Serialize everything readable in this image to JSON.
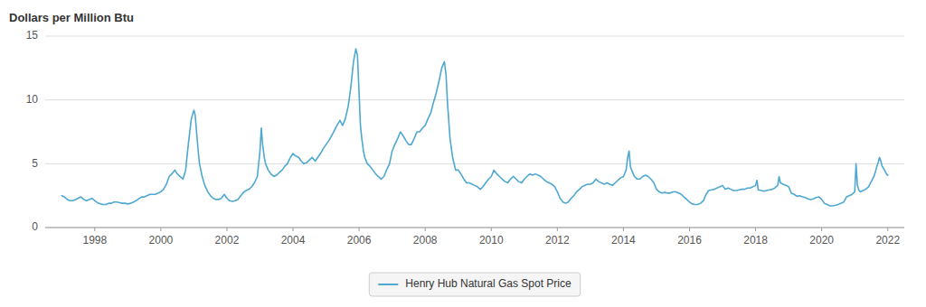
{
  "chart_data": {
    "type": "line",
    "ylabel": "Dollars per Million Btu",
    "xlim": [
      1996.5,
      2022.5
    ],
    "xticks": [
      1998,
      2000,
      2002,
      2004,
      2006,
      2008,
      2010,
      2012,
      2014,
      2016,
      2018,
      2020,
      2022
    ],
    "ylim": [
      0,
      15
    ],
    "yticks": [
      0,
      5,
      10,
      15
    ],
    "grid": true,
    "legend": "bottom",
    "x": [
      1997.0,
      1997.08,
      1997.17,
      1997.25,
      1997.33,
      1997.42,
      1997.5,
      1997.58,
      1997.67,
      1997.75,
      1997.83,
      1997.92,
      1998.0,
      1998.08,
      1998.17,
      1998.25,
      1998.33,
      1998.42,
      1998.5,
      1998.58,
      1998.67,
      1998.75,
      1998.83,
      1998.92,
      1999.0,
      1999.08,
      1999.17,
      1999.25,
      1999.33,
      1999.42,
      1999.5,
      1999.58,
      1999.67,
      1999.75,
      1999.83,
      1999.92,
      2000.0,
      2000.08,
      2000.17,
      2000.25,
      2000.33,
      2000.42,
      2000.5,
      2000.58,
      2000.67,
      2000.75,
      2000.83,
      2000.92,
      2001.0,
      2001.04,
      2001.08,
      2001.13,
      2001.17,
      2001.25,
      2001.33,
      2001.42,
      2001.5,
      2001.58,
      2001.67,
      2001.75,
      2001.83,
      2001.92,
      2002.0,
      2002.08,
      2002.17,
      2002.25,
      2002.33,
      2002.42,
      2002.5,
      2002.58,
      2002.67,
      2002.75,
      2002.83,
      2002.92,
      2003.0,
      2003.04,
      2003.08,
      2003.13,
      2003.17,
      2003.25,
      2003.33,
      2003.42,
      2003.5,
      2003.58,
      2003.67,
      2003.75,
      2003.83,
      2003.92,
      2004.0,
      2004.08,
      2004.17,
      2004.25,
      2004.33,
      2004.42,
      2004.5,
      2004.58,
      2004.67,
      2004.75,
      2004.83,
      2004.92,
      2005.0,
      2005.08,
      2005.17,
      2005.25,
      2005.33,
      2005.42,
      2005.5,
      2005.58,
      2005.67,
      2005.75,
      2005.83,
      2005.9,
      2005.95,
      2006.0,
      2006.04,
      2006.08,
      2006.13,
      2006.17,
      2006.25,
      2006.33,
      2006.42,
      2006.5,
      2006.58,
      2006.67,
      2006.75,
      2006.83,
      2006.92,
      2007.0,
      2007.08,
      2007.17,
      2007.25,
      2007.33,
      2007.42,
      2007.5,
      2007.58,
      2007.67,
      2007.75,
      2007.83,
      2007.92,
      2008.0,
      2008.08,
      2008.17,
      2008.25,
      2008.33,
      2008.42,
      2008.5,
      2008.58,
      2008.63,
      2008.67,
      2008.75,
      2008.83,
      2008.92,
      2009.0,
      2009.08,
      2009.17,
      2009.25,
      2009.33,
      2009.42,
      2009.5,
      2009.58,
      2009.67,
      2009.75,
      2009.83,
      2009.92,
      2010.0,
      2010.08,
      2010.17,
      2010.25,
      2010.33,
      2010.42,
      2010.5,
      2010.58,
      2010.67,
      2010.75,
      2010.83,
      2010.92,
      2011.0,
      2011.08,
      2011.17,
      2011.25,
      2011.33,
      2011.42,
      2011.5,
      2011.58,
      2011.67,
      2011.75,
      2011.83,
      2011.92,
      2012.0,
      2012.08,
      2012.17,
      2012.25,
      2012.33,
      2012.42,
      2012.5,
      2012.58,
      2012.67,
      2012.75,
      2012.83,
      2012.92,
      2013.0,
      2013.08,
      2013.17,
      2013.25,
      2013.33,
      2013.42,
      2013.5,
      2013.58,
      2013.67,
      2013.75,
      2013.83,
      2013.92,
      2014.0,
      2014.08,
      2014.13,
      2014.17,
      2014.21,
      2014.25,
      2014.33,
      2014.42,
      2014.5,
      2014.58,
      2014.67,
      2014.75,
      2014.83,
      2014.92,
      2015.0,
      2015.08,
      2015.17,
      2015.25,
      2015.33,
      2015.42,
      2015.5,
      2015.58,
      2015.67,
      2015.75,
      2015.83,
      2015.92,
      2016.0,
      2016.08,
      2016.17,
      2016.25,
      2016.33,
      2016.42,
      2016.5,
      2016.58,
      2016.67,
      2016.75,
      2016.83,
      2016.92,
      2017.0,
      2017.08,
      2017.17,
      2017.25,
      2017.33,
      2017.42,
      2017.5,
      2017.58,
      2017.67,
      2017.75,
      2017.83,
      2017.92,
      2018.0,
      2018.04,
      2018.08,
      2018.17,
      2018.25,
      2018.33,
      2018.42,
      2018.5,
      2018.58,
      2018.67,
      2018.71,
      2018.75,
      2018.83,
      2018.92,
      2019.0,
      2019.08,
      2019.17,
      2019.25,
      2019.33,
      2019.42,
      2019.5,
      2019.58,
      2019.67,
      2019.75,
      2019.83,
      2019.92,
      2020.0,
      2020.08,
      2020.17,
      2020.25,
      2020.33,
      2020.42,
      2020.5,
      2020.58,
      2020.67,
      2020.75,
      2020.83,
      2020.92,
      2021.0,
      2021.04,
      2021.08,
      2021.13,
      2021.17,
      2021.25,
      2021.33,
      2021.42,
      2021.5,
      2021.58,
      2021.63,
      2021.67,
      2021.71,
      2021.75,
      2021.79,
      2021.83,
      2021.88,
      2021.92,
      2021.96,
      2022.0
    ],
    "series": [
      {
        "name": "Henry Hub Natural Gas Spot Price",
        "color": "#4ea8d2",
        "values": [
          2.5,
          2.4,
          2.2,
          2.1,
          2.1,
          2.2,
          2.3,
          2.4,
          2.2,
          2.1,
          2.2,
          2.3,
          2.1,
          1.95,
          1.85,
          1.8,
          1.8,
          1.9,
          1.9,
          2.0,
          2.0,
          1.95,
          1.9,
          1.9,
          1.85,
          1.9,
          2.0,
          2.1,
          2.25,
          2.4,
          2.4,
          2.5,
          2.6,
          2.6,
          2.6,
          2.7,
          2.8,
          3.0,
          3.4,
          4.0,
          4.2,
          4.5,
          4.2,
          4.0,
          3.8,
          4.5,
          6.5,
          8.5,
          9.2,
          8.8,
          7.5,
          6.0,
          5.0,
          4.0,
          3.3,
          2.8,
          2.5,
          2.3,
          2.2,
          2.2,
          2.3,
          2.6,
          2.3,
          2.1,
          2.05,
          2.1,
          2.2,
          2.5,
          2.75,
          2.9,
          3.0,
          3.2,
          3.5,
          4.0,
          6.0,
          7.8,
          6.5,
          5.5,
          5.0,
          4.5,
          4.2,
          4.0,
          4.1,
          4.3,
          4.5,
          4.8,
          5.0,
          5.5,
          5.8,
          5.6,
          5.5,
          5.2,
          5.0,
          5.1,
          5.3,
          5.5,
          5.2,
          5.5,
          5.8,
          6.2,
          6.5,
          6.8,
          7.2,
          7.6,
          8.0,
          8.4,
          8.0,
          8.5,
          9.5,
          11.0,
          13.0,
          14.0,
          13.5,
          10.5,
          8.0,
          7.0,
          6.0,
          5.5,
          5.0,
          4.8,
          4.5,
          4.2,
          4.0,
          3.8,
          4.0,
          4.5,
          5.0,
          6.0,
          6.5,
          7.0,
          7.5,
          7.2,
          6.8,
          6.5,
          6.5,
          7.0,
          7.5,
          7.5,
          7.8,
          8.0,
          8.5,
          9.0,
          9.8,
          10.5,
          11.5,
          12.5,
          13.0,
          12.0,
          10.0,
          7.0,
          5.5,
          4.5,
          4.5,
          4.2,
          3.8,
          3.5,
          3.5,
          3.4,
          3.3,
          3.2,
          3.0,
          3.2,
          3.5,
          3.8,
          4.0,
          4.5,
          4.2,
          4.0,
          3.8,
          3.6,
          3.5,
          3.8,
          4.0,
          3.8,
          3.6,
          3.5,
          3.8,
          4.0,
          4.2,
          4.1,
          4.2,
          4.1,
          4.0,
          3.8,
          3.6,
          3.5,
          3.4,
          3.2,
          2.8,
          2.3,
          2.0,
          1.9,
          2.0,
          2.3,
          2.5,
          2.8,
          3.0,
          3.2,
          3.3,
          3.4,
          3.4,
          3.5,
          3.8,
          3.6,
          3.5,
          3.4,
          3.5,
          3.4,
          3.3,
          3.5,
          3.7,
          3.9,
          4.0,
          4.5,
          5.5,
          6.0,
          4.8,
          4.5,
          4.0,
          3.8,
          3.8,
          4.0,
          4.1,
          4.0,
          3.8,
          3.5,
          3.0,
          2.8,
          2.7,
          2.75,
          2.7,
          2.7,
          2.8,
          2.8,
          2.7,
          2.6,
          2.4,
          2.2,
          2.0,
          1.85,
          1.8,
          1.8,
          1.9,
          2.1,
          2.6,
          2.9,
          2.95,
          3.0,
          3.1,
          3.2,
          3.3,
          3.0,
          3.1,
          3.0,
          2.9,
          2.9,
          2.95,
          3.0,
          3.0,
          3.1,
          3.1,
          3.2,
          3.3,
          3.7,
          2.95,
          2.9,
          2.85,
          2.9,
          2.95,
          3.0,
          3.1,
          3.3,
          4.0,
          3.5,
          3.4,
          3.3,
          3.2,
          2.7,
          2.6,
          2.45,
          2.5,
          2.4,
          2.35,
          2.25,
          2.2,
          2.25,
          2.35,
          2.4,
          2.2,
          1.9,
          1.8,
          1.7,
          1.7,
          1.75,
          1.8,
          1.9,
          2.0,
          2.4,
          2.5,
          2.6,
          2.8,
          5.0,
          3.3,
          2.9,
          2.8,
          2.9,
          3.0,
          3.2,
          3.6,
          4.0,
          4.4,
          4.8,
          5.1,
          5.5,
          5.2,
          4.8,
          4.6,
          4.4,
          4.2,
          4.1
        ]
      }
    ]
  }
}
